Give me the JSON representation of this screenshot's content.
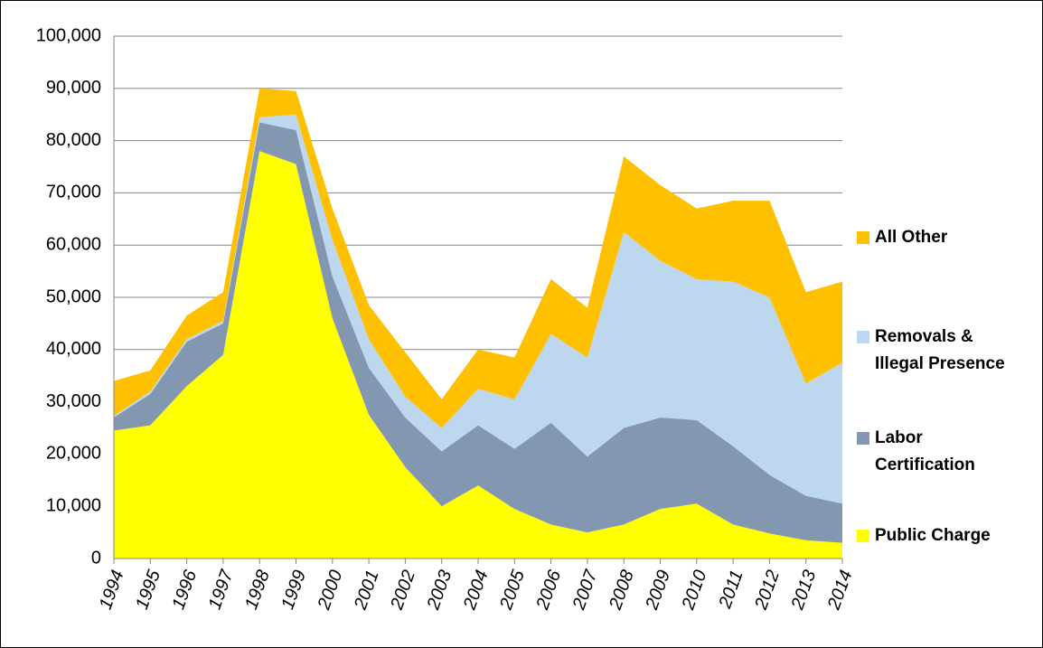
{
  "chart_data": {
    "type": "stacked_area",
    "x": [
      1994,
      1995,
      1996,
      1997,
      1998,
      1999,
      2000,
      2001,
      2002,
      2003,
      2004,
      2005,
      2006,
      2007,
      2008,
      2009,
      2010,
      2011,
      2012,
      2013,
      2014
    ],
    "series": [
      {
        "name": "Public Charge",
        "color": "#ffff00",
        "values": [
          24500,
          25500,
          33000,
          39000,
          78000,
          75500,
          46000,
          27500,
          17500,
          10000,
          14000,
          9500,
          6500,
          5000,
          6500,
          9500,
          10500,
          6500,
          4800,
          3500,
          3000
        ]
      },
      {
        "name": "Labor Certification",
        "color": "#8497b0",
        "values": [
          2500,
          6000,
          8500,
          6000,
          5500,
          6500,
          8000,
          9000,
          9500,
          10500,
          11500,
          11500,
          19500,
          14500,
          18500,
          17500,
          16000,
          15000,
          11200,
          8500,
          7500
        ]
      },
      {
        "name": "Removals & Illegal Presence",
        "color": "#bdd7ee",
        "values": [
          300,
          500,
          500,
          500,
          1000,
          3000,
          7000,
          5500,
          4000,
          4500,
          7000,
          9500,
          17000,
          19000,
          37500,
          30000,
          27000,
          31500,
          34000,
          21500,
          27000
        ]
      },
      {
        "name": "All Other",
        "color": "#ffc000",
        "values": [
          6700,
          4000,
          4500,
          5500,
          5500,
          4500,
          6000,
          6500,
          8500,
          5500,
          7500,
          8000,
          10500,
          9500,
          14500,
          14500,
          13500,
          15500,
          18500,
          17500,
          15500
        ]
      }
    ],
    "xlim": [
      1994,
      2014
    ],
    "ylim": [
      0,
      100000
    ],
    "yticks": [
      0,
      {
        "value": 10000,
        "label": "10,000"
      },
      {
        "value": 20000,
        "label": "20,000"
      },
      {
        "value": 30000,
        "label": "30,000"
      },
      {
        "value": 40000,
        "label": "40,000"
      },
      {
        "value": 50000,
        "label": "50,000"
      },
      {
        "value": 60000,
        "label": "60,000"
      },
      {
        "value": 70000,
        "label": "70,000"
      },
      {
        "value": 80000,
        "label": "80,000"
      },
      {
        "value": 90000,
        "label": "90,000"
      },
      {
        "value": 100000,
        "label": "100,000"
      }
    ],
    "grid": true,
    "legend": "right"
  }
}
